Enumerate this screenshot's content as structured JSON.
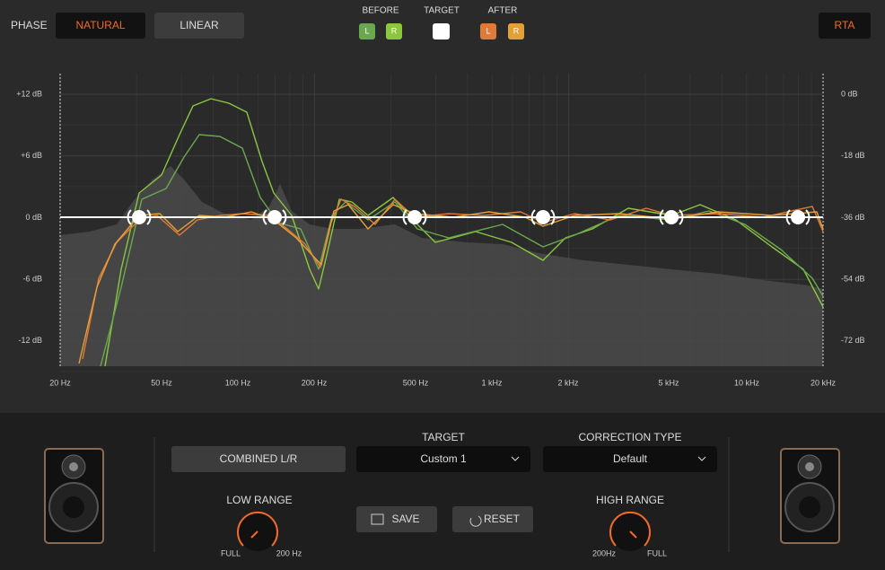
{
  "header": {
    "phase_label": "PHASE",
    "phase_options": [
      "NATURAL",
      "LINEAR"
    ],
    "before": {
      "label": "BEFORE",
      "left": "L",
      "right": "R"
    },
    "target": {
      "label": "TARGET"
    },
    "after": {
      "label": "AFTER",
      "left": "L",
      "right": "R"
    },
    "rta": "RTA"
  },
  "graph": {
    "left_axis": [
      "+12 dB",
      "+6 dB",
      "0 dB",
      "-6 dB",
      "-12 dB"
    ],
    "right_axis": [
      "0 dB",
      "-18 dB",
      "-36 dB",
      "-54 dB",
      "-72 dB"
    ],
    "x_axis": [
      "20 Hz",
      "50 Hz",
      "100 Hz",
      "200 Hz",
      "500 Hz",
      "1 kHz",
      "2 kHz",
      "5 kHz",
      "10 kHz",
      "20 kHz"
    ]
  },
  "controls": {
    "combined": "COMBINED L/R",
    "target": {
      "label": "TARGET",
      "value": "Custom 1"
    },
    "correction": {
      "label": "CORRECTION TYPE",
      "value": "Default"
    },
    "low_range": {
      "label": "LOW RANGE",
      "min": "FULL",
      "max": "200 Hz"
    },
    "high_range": {
      "label": "HIGH RANGE",
      "min": "200Hz",
      "max": "FULL"
    },
    "save": "SAVE",
    "reset": "RESET"
  }
}
